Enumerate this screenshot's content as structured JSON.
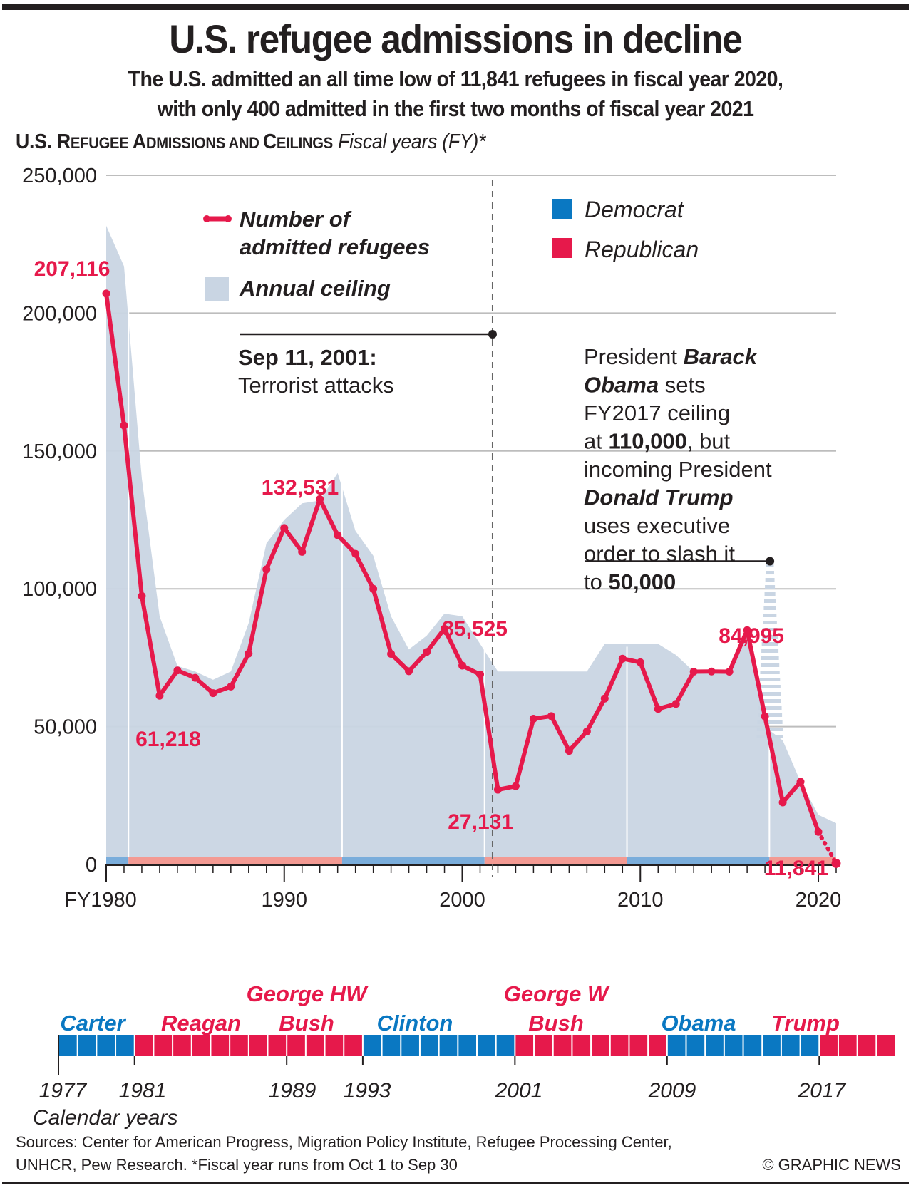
{
  "header": {
    "title": "U.S. refugee admissions in decline",
    "subtitle_line1": "The U.S. admitted an all time low of 11,841 refugees in fiscal year 2020,",
    "subtitle_line2": "with only 400 admitted in the first two months of fiscal year 2021",
    "section_title_parts": [
      "U.S. R",
      "EFUGEE ",
      "A",
      "DMISSIONS AND ",
      "C",
      "EILINGS"
    ],
    "section_note": "Fiscal years (FY)*"
  },
  "colors": {
    "admitted": "#e6194b",
    "ceiling": "#c9d5e3",
    "democrat": "#0a78c2",
    "republican": "#e6194b",
    "democrat_band": "#7aaddb",
    "republican_band": "#f39a93",
    "grid": "#bdbdbd",
    "text": "#231f20"
  },
  "chart_data": {
    "type": "line",
    "title": "U.S. Refugee Admissions and Ceilings",
    "xlabel": "Fiscal years (FY)",
    "ylabel": "",
    "ylim": [
      0,
      250000
    ],
    "xlim": [
      1980,
      2021
    ],
    "grid": true,
    "y_ticks": [
      0,
      50000,
      100000,
      150000,
      200000,
      250000
    ],
    "y_tick_labels": [
      "0",
      "50,000",
      "100,000",
      "150,000",
      "200,000",
      "250,000"
    ],
    "x_ticks": [
      1980,
      1990,
      2000,
      2010,
      2020
    ],
    "x_tick_labels": [
      "FY1980",
      "1990",
      "2000",
      "2010",
      "2020"
    ],
    "x": [
      1980,
      1981,
      1982,
      1983,
      1984,
      1985,
      1986,
      1987,
      1988,
      1989,
      1990,
      1991,
      1992,
      1993,
      1994,
      1995,
      1996,
      1997,
      1998,
      1999,
      2000,
      2001,
      2002,
      2003,
      2004,
      2005,
      2006,
      2007,
      2008,
      2009,
      2010,
      2011,
      2012,
      2013,
      2014,
      2015,
      2016,
      2017,
      2018,
      2019,
      2020,
      2021
    ],
    "series": [
      {
        "name": "Number of admitted refugees",
        "type": "line",
        "values": [
          207116,
          159252,
          97355,
          61218,
          70393,
          67704,
          62146,
          64528,
          76483,
          107070,
          122066,
          113389,
          132531,
          119448,
          112682,
          99974,
          76403,
          70085,
          77080,
          85525,
          72143,
          68925,
          27131,
          28403,
          52868,
          53813,
          41223,
          48282,
          60191,
          74654,
          73311,
          56424,
          58238,
          69926,
          69987,
          69933,
          84995,
          53716,
          22491,
          30000,
          11841,
          400
        ],
        "partial_last_point": true
      },
      {
        "name": "Annual ceiling",
        "type": "area",
        "values": [
          231700,
          217000,
          140000,
          90000,
          72000,
          70000,
          67000,
          70000,
          87500,
          116500,
          125000,
          131000,
          132000,
          142000,
          121000,
          112000,
          90000,
          78000,
          83000,
          91000,
          90000,
          80000,
          70000,
          70000,
          70000,
          70000,
          70000,
          70000,
          80000,
          80000,
          80000,
          80000,
          76000,
          70000,
          70000,
          70000,
          85000,
          50000,
          45000,
          30000,
          18000,
          15000
        ],
        "hatched_original": {
          "year": 2017,
          "value": 110000
        }
      }
    ],
    "data_labels": [
      {
        "x": 1980,
        "text": "207,116"
      },
      {
        "x": 1983,
        "text": "61,218"
      },
      {
        "x": 1992,
        "text": "132,531"
      },
      {
        "x": 1999,
        "text": "85,525"
      },
      {
        "x": 2002,
        "text": "27,131"
      },
      {
        "x": 2016,
        "text": "84,995"
      },
      {
        "x": 2020,
        "text": "11,841"
      }
    ],
    "party_bands": [
      {
        "from": 1980,
        "to": 1981.25,
        "party": "Democrat"
      },
      {
        "from": 1981.25,
        "to": 1993.25,
        "party": "Republican"
      },
      {
        "from": 1993.25,
        "to": 2001.25,
        "party": "Democrat"
      },
      {
        "from": 2001.25,
        "to": 2009.25,
        "party": "Republican"
      },
      {
        "from": 2009.25,
        "to": 2017.25,
        "party": "Democrat"
      },
      {
        "from": 2017.25,
        "to": 2021,
        "party": "Republican"
      }
    ],
    "legend": {
      "placement": "top",
      "items": [
        {
          "label_line1": "Number of",
          "label_line2": "admitted refugees",
          "kind": "line"
        },
        {
          "label": "Annual ceiling",
          "kind": "area"
        },
        {
          "label": "Democrat",
          "kind": "party"
        },
        {
          "label": "Republican",
          "kind": "party"
        }
      ]
    },
    "annotations": [
      {
        "x": 2001.7,
        "title": "Sep 11, 2001:",
        "text": "Terrorist attacks"
      },
      {
        "x": 2017,
        "value": 110000,
        "lines": [
          [
            {
              "t": "President ",
              "b": false
            },
            {
              "t": "Barack",
              "b": true,
              "i": true
            }
          ],
          [
            {
              "t": "Obama",
              "b": true,
              "i": true
            },
            {
              "t": " sets",
              "b": false
            }
          ],
          [
            {
              "t": "FY2017 ceiling",
              "b": false
            }
          ],
          [
            {
              "t": "at ",
              "b": false
            },
            {
              "t": "110,000",
              "b": true
            },
            {
              "t": ", but",
              "b": false
            }
          ],
          [
            {
              "t": "incoming President",
              "b": false
            }
          ],
          [
            {
              "t": "Donald Trump",
              "b": true,
              "i": true
            }
          ],
          [
            {
              "t": "uses executive",
              "b": false
            }
          ],
          [
            {
              "t": "order to slash it",
              "b": false
            }
          ],
          [
            {
              "t": "to ",
              "b": false
            },
            {
              "t": "50,000",
              "b": true
            }
          ]
        ]
      }
    ]
  },
  "presidents": {
    "calendar_start": 1977,
    "calendar_end": 2021,
    "terms": [
      {
        "name": "Carter",
        "party": "Democrat",
        "from": 1977,
        "to": 1981
      },
      {
        "name": "Reagan",
        "party": "Republican",
        "from": 1981,
        "to": 1989
      },
      {
        "name": "George HW Bush",
        "line1": "George HW",
        "line2": "Bush",
        "party": "Republican",
        "from": 1989,
        "to": 1993
      },
      {
        "name": "Clinton",
        "party": "Democrat",
        "from": 1993,
        "to": 2001
      },
      {
        "name": "George W Bush",
        "line1": "George W",
        "line2": "Bush",
        "party": "Republican",
        "from": 2001,
        "to": 2009
      },
      {
        "name": "Obama",
        "party": "Democrat",
        "from": 2009,
        "to": 2017
      },
      {
        "name": "Trump",
        "party": "Republican",
        "from": 2017,
        "to": 2021
      }
    ],
    "year_labels": [
      "1977",
      "1981",
      "1989",
      "1993",
      "2001",
      "2009",
      "2017"
    ],
    "axis_label": "Calendar years"
  },
  "footer": {
    "sources_line1": "Sources: Center for American Progress, Migration Policy Institute, Refugee Processing Center,",
    "sources_line2": "UNHCR, Pew Research. *Fiscal year runs from Oct 1 to Sep 30",
    "credit": "© GRAPHIC NEWS"
  }
}
